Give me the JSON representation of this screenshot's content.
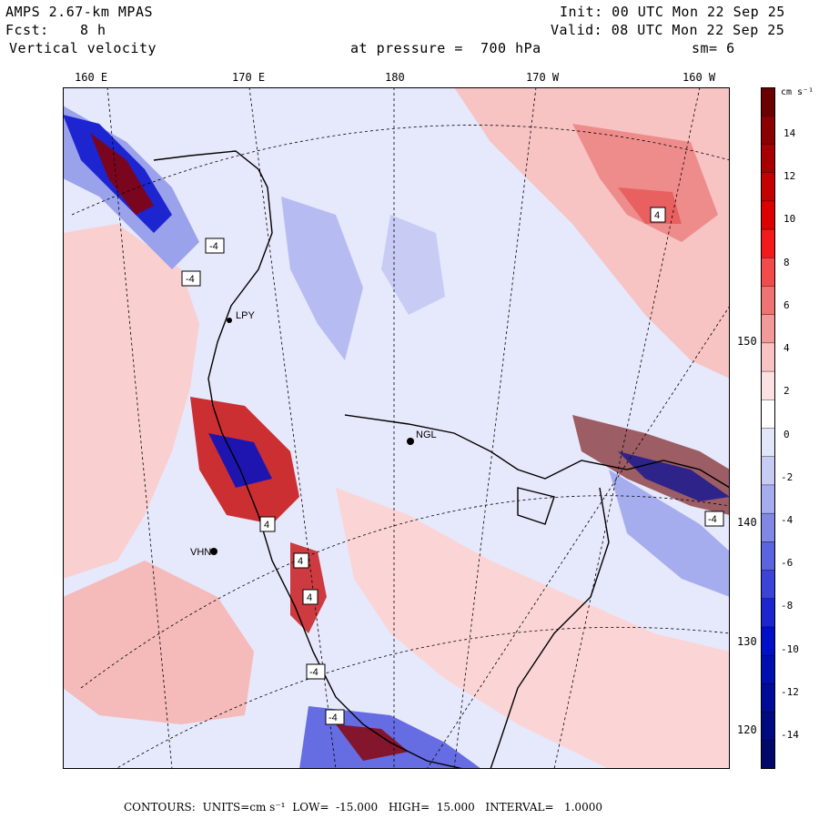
{
  "header": {
    "model": "AMPS 2.67-km MPAS",
    "init": "Init: 00 UTC Mon 22 Sep 25",
    "fcst_label": "Fcst:",
    "fcst_value": "8 h",
    "valid": "Valid: 08 UTC Mon 22 Sep 25",
    "field": "Vertical velocity",
    "pressure": "at pressure =  700 hPa",
    "smoothing": "sm= 6"
  },
  "longitude_labels": [
    "160 E",
    "170 E",
    "180",
    "170 W",
    "160 W"
  ],
  "latitude_labels": [
    "150 W",
    "140 W",
    "130 W",
    "120 W"
  ],
  "stations": [
    "NGL",
    "LPY",
    "VHN"
  ],
  "contour_labels": [
    "-4",
    "-4",
    "4",
    "4",
    "4",
    "4",
    "-4",
    "-4",
    "-4"
  ],
  "colorbar": {
    "unit": "cm s⁻¹",
    "ticks": [
      "14",
      "12",
      "10",
      "8",
      "6",
      "4",
      "2",
      "0",
      "-2",
      "-4",
      "-6",
      "-8",
      "-10",
      "-12",
      "-14"
    ],
    "colors": [
      "#6b0000",
      "#8b0000",
      "#a80000",
      "#c40000",
      "#de0000",
      "#f21a1a",
      "#f24b4b",
      "#ee7373",
      "#f29a9a",
      "#f7c3c3",
      "#fbe1e1",
      "#ffffff",
      "#e3e5fa",
      "#c8ccf5",
      "#a6adee",
      "#8088e6",
      "#5b63de",
      "#3b43d8",
      "#1c25d0",
      "#0010c8",
      "#000fb0",
      "#000c98",
      "#000a80",
      "#000868"
    ]
  },
  "footer": {
    "contours": "CONTOURS:",
    "units": "UNITS=cm s⁻¹",
    "low": "LOW=  -15.000",
    "high": "HIGH=  15.000",
    "interval": "INTERVAL=   1.0000"
  }
}
